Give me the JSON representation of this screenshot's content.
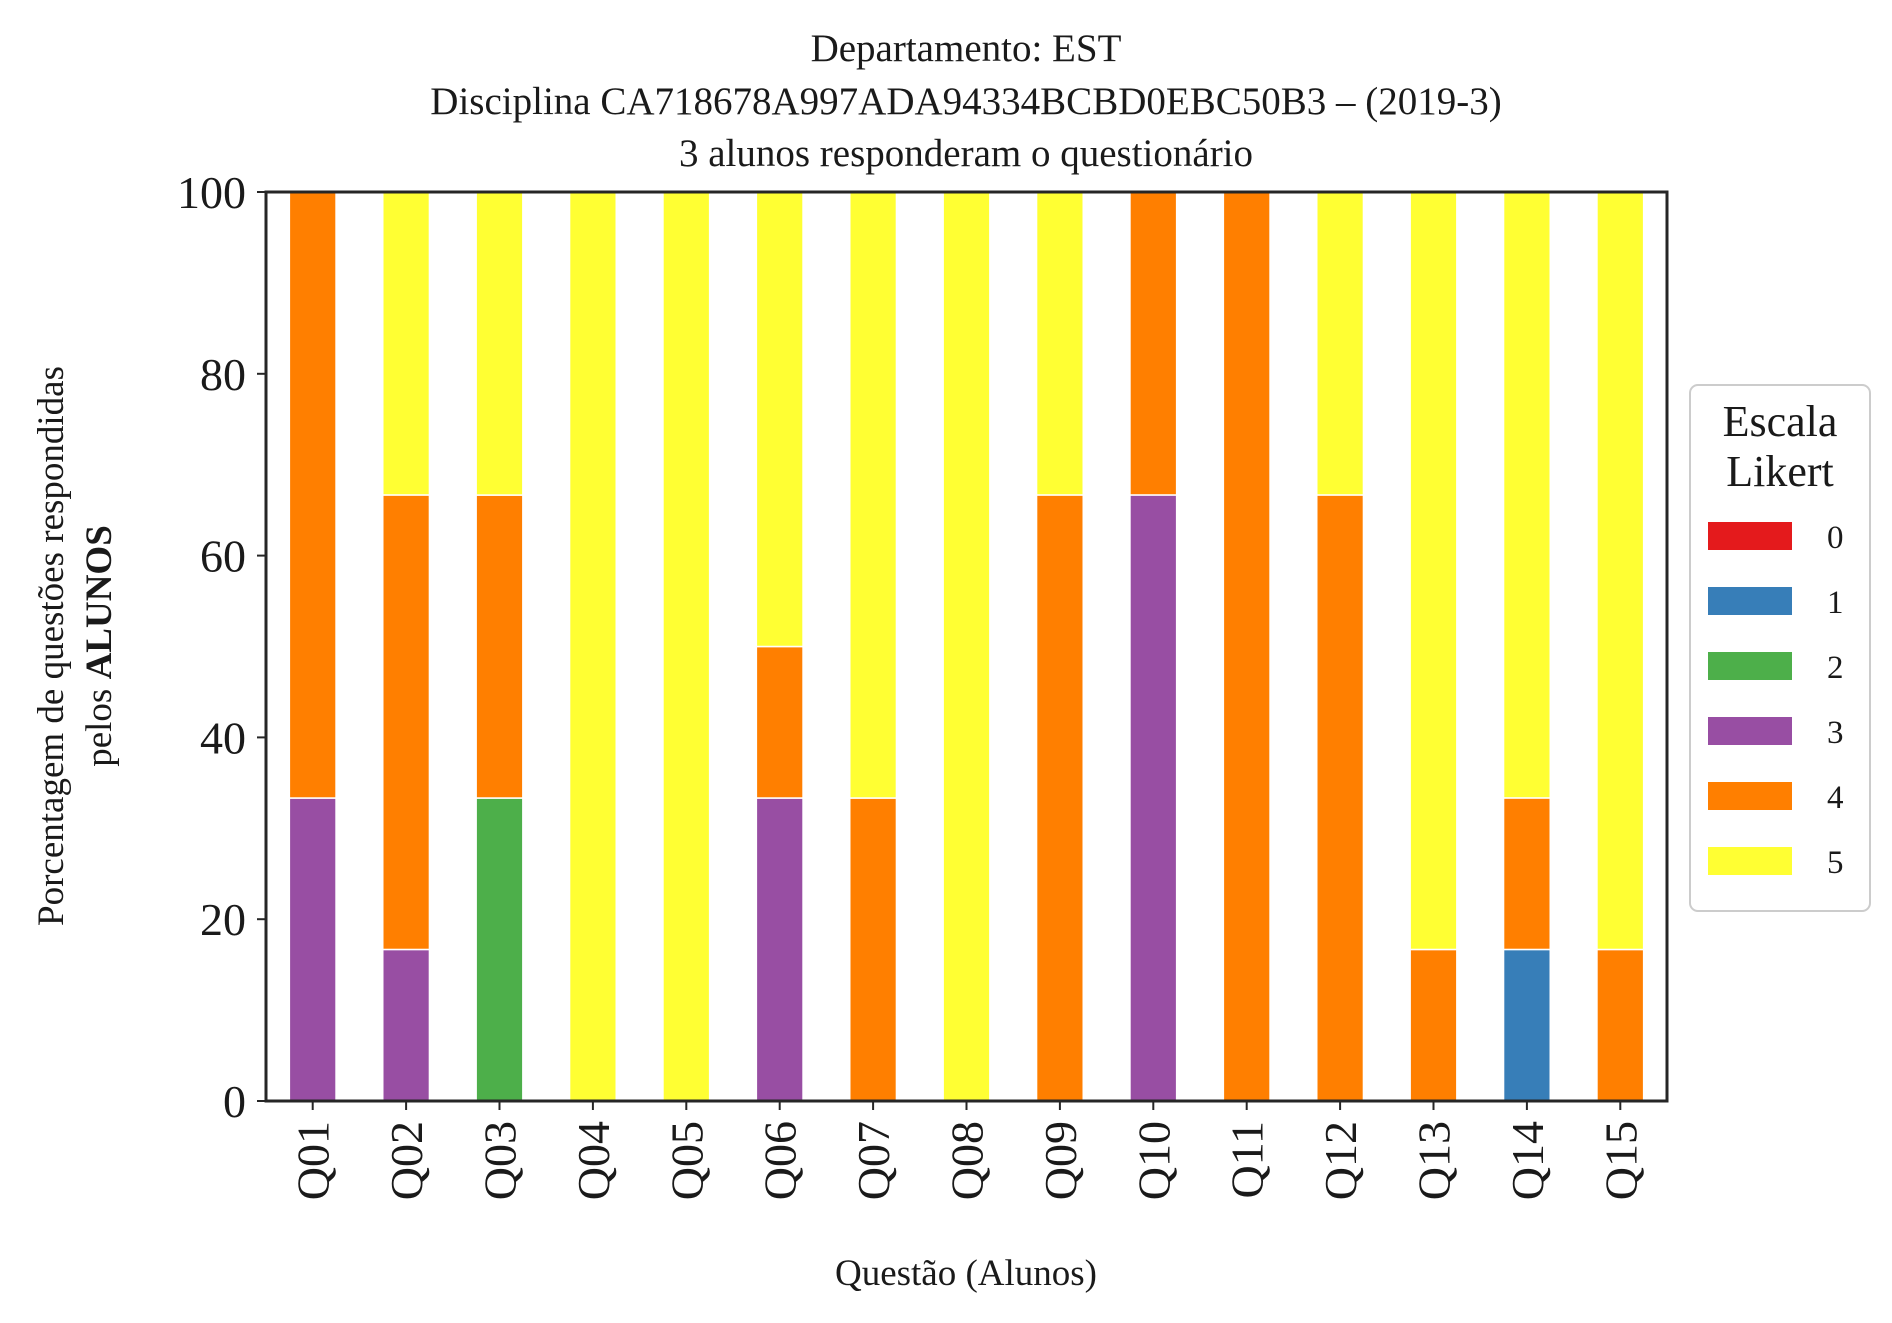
{
  "chart_data": {
    "type": "bar",
    "stacked": true,
    "title_lines": [
      "Departamento: EST",
      "Disciplina CA718678A997ADA94334BCBD0EBC50B3 – (2019-3)",
      "3 alunos responderam o questionário"
    ],
    "xlabel": "Questão (Alunos)",
    "ylabel_line1": "Porcentagem de questões respondidas",
    "ylabel_line2_prefix": "pelos ",
    "ylabel_line2_bold": "ALUNOS",
    "ylim": [
      0,
      100
    ],
    "yticks": [
      0,
      20,
      40,
      60,
      80,
      100
    ],
    "grid": false,
    "legend": {
      "title_lines": [
        "Escala",
        "Likert"
      ],
      "placement": "right-center"
    },
    "categories": [
      "Q01",
      "Q02",
      "Q03",
      "Q04",
      "Q05",
      "Q06",
      "Q07",
      "Q08",
      "Q09",
      "Q10",
      "Q11",
      "Q12",
      "Q13",
      "Q14",
      "Q15"
    ],
    "series": [
      {
        "name": "0",
        "color": "#e41a1c",
        "values": [
          0,
          0,
          0,
          0,
          0,
          0,
          0,
          0,
          0,
          0,
          0,
          0,
          0,
          0,
          0
        ]
      },
      {
        "name": "1",
        "color": "#377eb8",
        "values": [
          0,
          0,
          0,
          0,
          0,
          0,
          0,
          0,
          0,
          0,
          0,
          0,
          0,
          16.67,
          0
        ]
      },
      {
        "name": "2",
        "color": "#4daf4a",
        "values": [
          0,
          0,
          33.33,
          0,
          0,
          0,
          0,
          0,
          0,
          0,
          0,
          0,
          0,
          0,
          0
        ]
      },
      {
        "name": "3",
        "color": "#984ea3",
        "values": [
          33.33,
          16.67,
          0,
          0,
          0,
          33.33,
          0,
          0,
          0,
          66.67,
          0,
          0,
          0,
          0,
          0
        ]
      },
      {
        "name": "4",
        "color": "#ff7f00",
        "values": [
          66.67,
          50,
          33.33,
          0,
          0,
          16.67,
          33.33,
          0,
          66.67,
          33.33,
          100,
          66.67,
          16.67,
          16.67,
          16.67
        ]
      },
      {
        "name": "5",
        "color": "#ffff33",
        "values": [
          0,
          33.33,
          33.33,
          100,
          100,
          50,
          66.67,
          100,
          33.33,
          0,
          0,
          33.33,
          83.33,
          66.67,
          83.33
        ]
      }
    ]
  }
}
